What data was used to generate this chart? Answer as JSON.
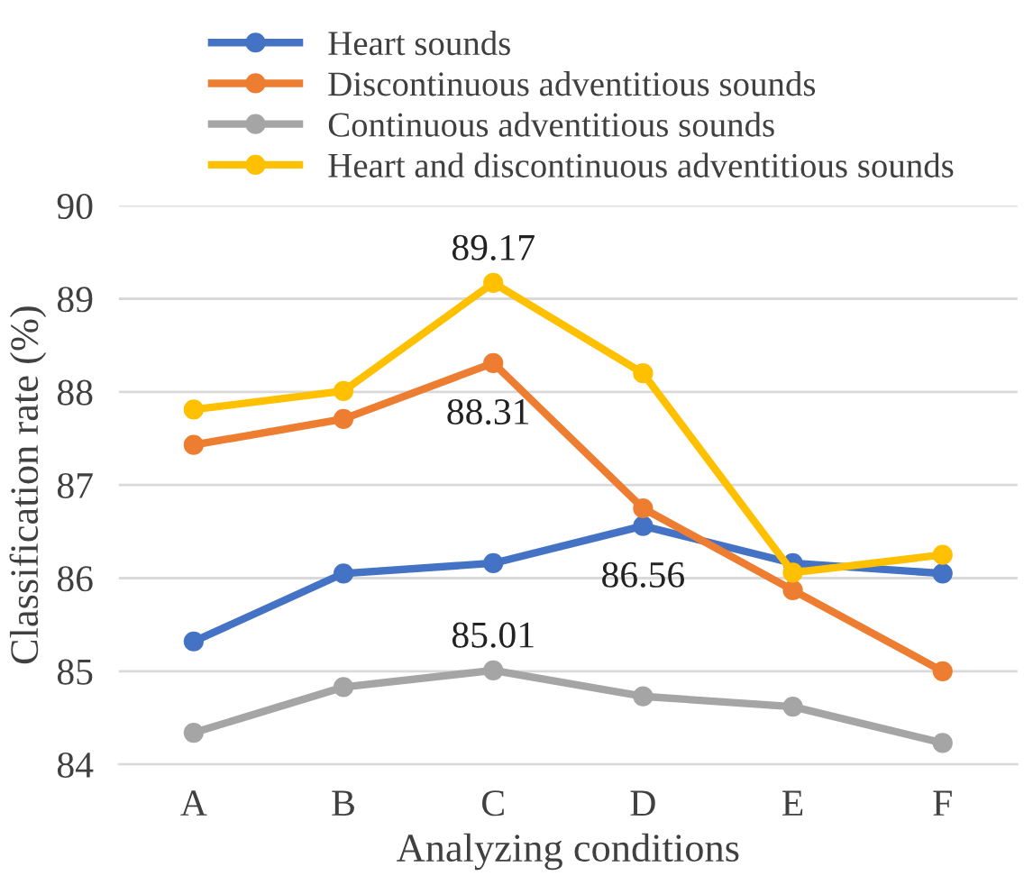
{
  "chart_data": {
    "type": "line",
    "xlabel": "Analyzing conditions",
    "ylabel": "Classification rate (%)",
    "categories": [
      "A",
      "B",
      "C",
      "D",
      "E",
      "F"
    ],
    "series": [
      {
        "name": "Heart sounds",
        "color": "#4472c4",
        "values": [
          85.32,
          86.05,
          86.16,
          86.56,
          86.16,
          86.05
        ],
        "value_labels": [
          null,
          null,
          null,
          "86.56",
          null,
          null
        ]
      },
      {
        "name": "Discontinuous adventitious sounds",
        "color": "#ed7d31",
        "values": [
          87.43,
          87.71,
          88.31,
          86.75,
          85.87,
          85.0
        ],
        "value_labels": [
          null,
          null,
          "88.31",
          null,
          null,
          null
        ]
      },
      {
        "name": "Continuous adventitious sounds",
        "color": "#a5a5a5",
        "values": [
          84.34,
          84.83,
          85.01,
          84.73,
          84.62,
          84.23
        ],
        "value_labels": [
          null,
          null,
          "85.01",
          null,
          null,
          null
        ]
      },
      {
        "name": "Heart and discontinuous adventitious sounds",
        "color": "#ffc000",
        "values": [
          87.81,
          88.01,
          89.17,
          88.2,
          86.06,
          86.25
        ],
        "value_labels": [
          null,
          null,
          "89.17",
          null,
          null,
          null
        ]
      }
    ],
    "ylim": [
      84,
      90
    ],
    "yticks": [
      84,
      85,
      86,
      87,
      88,
      89,
      90
    ],
    "grid": "y",
    "legend": "top",
    "marker": "circle",
    "line_style": "solid"
  }
}
